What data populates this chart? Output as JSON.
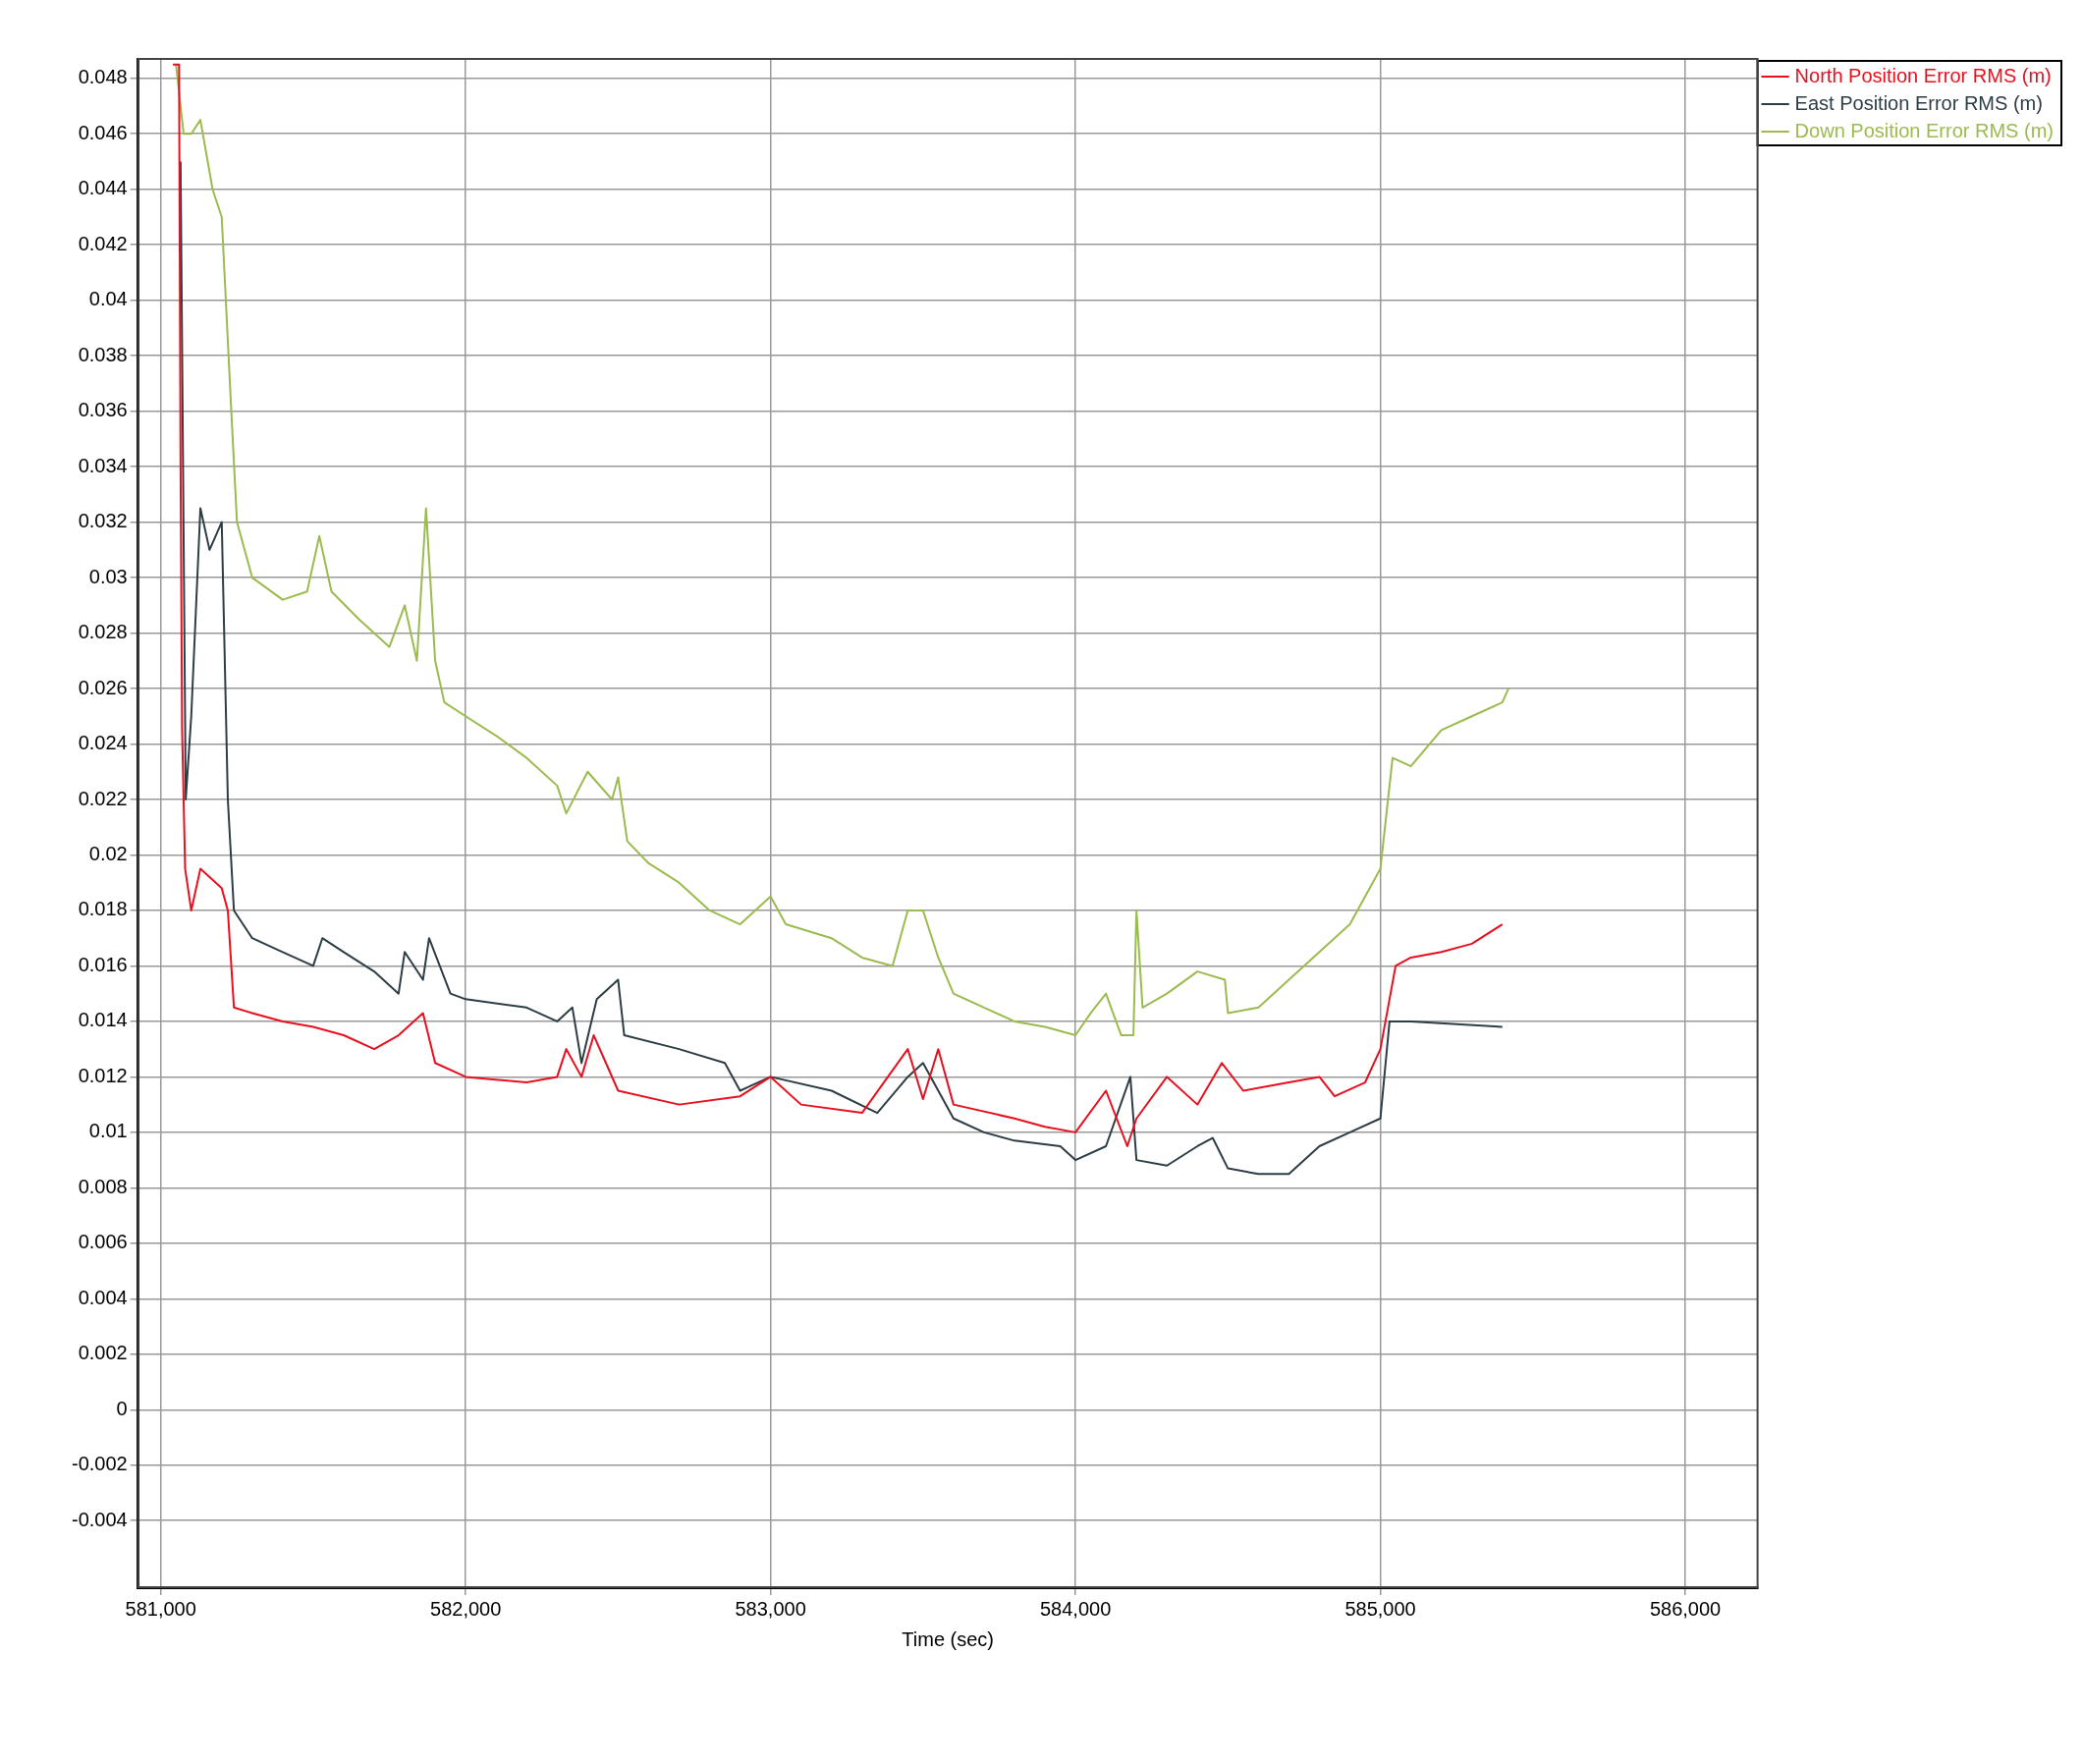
{
  "chart_data": {
    "type": "line",
    "xlabel": "Time (sec)",
    "xlim": [
      580926,
      586237
    ],
    "ylim": [
      -0.0064,
      0.0487
    ],
    "xticks": [
      {
        "value": 581000,
        "label": "581,000"
      },
      {
        "value": 582000,
        "label": "582,000"
      },
      {
        "value": 583000,
        "label": "583,000"
      },
      {
        "value": 584000,
        "label": "584,000"
      },
      {
        "value": 585000,
        "label": "585,000"
      },
      {
        "value": 586000,
        "label": "586,000"
      }
    ],
    "yticks": [
      -0.004,
      -0.002,
      0,
      0.002,
      0.004,
      0.006,
      0.008,
      0.01,
      0.012,
      0.014,
      0.016,
      0.018,
      0.02,
      0.022,
      0.024,
      0.026,
      0.028,
      0.03,
      0.032,
      0.034,
      0.036,
      0.038,
      0.04,
      0.042,
      0.044,
      0.046,
      0.048
    ],
    "grid": true,
    "legend": "top right",
    "marker": "none",
    "line_style": "solid",
    "series": [
      {
        "name": "North Position Error RMS (m)",
        "color": "#e8101f",
        "x": [
          581040,
          581060,
          581065,
          581070,
          581080,
          581100,
          581130,
          581200,
          581220,
          581240,
          581300,
          581400,
          581500,
          581600,
          581700,
          581780,
          581860,
          581900,
          582000,
          582200,
          582300,
          582330,
          582380,
          582420,
          582460,
          582500,
          582700,
          582900,
          583000,
          583100,
          583300,
          583450,
          583500,
          583550,
          583600,
          583800,
          583900,
          584000,
          584100,
          584170,
          584200,
          584300,
          584400,
          584480,
          584550,
          584700,
          584800,
          584850,
          584950,
          585000,
          585050,
          585100,
          585200,
          585300,
          585400
        ],
        "values": [
          0.0485,
          0.0485,
          0.034,
          0.0245,
          0.0195,
          0.018,
          0.0195,
          0.0188,
          0.018,
          0.0145,
          0.0143,
          0.014,
          0.0138,
          0.0135,
          0.013,
          0.0135,
          0.0143,
          0.0125,
          0.012,
          0.0118,
          0.012,
          0.013,
          0.012,
          0.0135,
          0.0125,
          0.0115,
          0.011,
          0.0113,
          0.012,
          0.011,
          0.0107,
          0.013,
          0.0112,
          0.013,
          0.011,
          0.0105,
          0.0102,
          0.01,
          0.0115,
          0.0095,
          0.0105,
          0.012,
          0.011,
          0.0125,
          0.0115,
          0.0118,
          0.012,
          0.0113,
          0.0118,
          0.013,
          0.016,
          0.0163,
          0.0165,
          0.0168,
          0.0175
        ]
      },
      {
        "name": "East Position Error RMS (m)",
        "color": "#2d3d45",
        "x": [
          581065,
          581082,
          581100,
          581130,
          581160,
          581200,
          581220,
          581240,
          581300,
          581400,
          581500,
          581530,
          581600,
          581700,
          581780,
          581800,
          581860,
          581880,
          581950,
          582000,
          582200,
          582300,
          582350,
          582380,
          582430,
          582500,
          582520,
          582700,
          582850,
          582900,
          583000,
          583200,
          583350,
          583450,
          583500,
          583600,
          583700,
          583800,
          583950,
          584000,
          584100,
          584180,
          584200,
          584300,
          584400,
          584450,
          584500,
          584600,
          584700,
          584800,
          584900,
          585000,
          585030,
          585100,
          585400
        ],
        "values": [
          0.045,
          0.022,
          0.025,
          0.0325,
          0.031,
          0.032,
          0.022,
          0.018,
          0.017,
          0.0165,
          0.016,
          0.017,
          0.0165,
          0.0158,
          0.015,
          0.0165,
          0.0155,
          0.017,
          0.015,
          0.0148,
          0.0145,
          0.014,
          0.0145,
          0.0125,
          0.0148,
          0.0155,
          0.0135,
          0.013,
          0.0125,
          0.0115,
          0.012,
          0.0115,
          0.0107,
          0.012,
          0.0125,
          0.0105,
          0.01,
          0.0097,
          0.0095,
          0.009,
          0.0095,
          0.012,
          0.009,
          0.0088,
          0.0095,
          0.0098,
          0.0087,
          0.0085,
          0.0085,
          0.0095,
          0.01,
          0.0105,
          0.014,
          0.014,
          0.0138
        ]
      },
      {
        "name": "Down Position Error RMS (m)",
        "color": "#9bbb4f",
        "x": [
          581050,
          581075,
          581100,
          581130,
          581170,
          581200,
          581230,
          581250,
          581300,
          581400,
          581480,
          581520,
          581560,
          581650,
          581750,
          581800,
          581840,
          581870,
          581900,
          581930,
          582000,
          582100,
          582200,
          582300,
          582330,
          582400,
          582480,
          582500,
          582530,
          582600,
          582700,
          582800,
          582900,
          583000,
          583050,
          583200,
          583300,
          583400,
          583450,
          583500,
          583550,
          583600,
          583700,
          583800,
          583900,
          584000,
          584050,
          584100,
          584150,
          584190,
          584200,
          584220,
          584300,
          584400,
          584490,
          584500,
          584600,
          584700,
          584800,
          584900,
          585000,
          585040,
          585100,
          585200,
          585300,
          585400,
          585420
        ],
        "values": [
          0.0485,
          0.046,
          0.046,
          0.0465,
          0.044,
          0.043,
          0.0363,
          0.032,
          0.03,
          0.0292,
          0.0295,
          0.0315,
          0.0295,
          0.0285,
          0.0275,
          0.029,
          0.027,
          0.0325,
          0.027,
          0.0255,
          0.025,
          0.0243,
          0.0235,
          0.0225,
          0.0215,
          0.023,
          0.022,
          0.0228,
          0.0205,
          0.0197,
          0.019,
          0.018,
          0.0175,
          0.0185,
          0.0175,
          0.017,
          0.0163,
          0.016,
          0.018,
          0.018,
          0.0163,
          0.015,
          0.0145,
          0.014,
          0.0138,
          0.0135,
          0.0143,
          0.015,
          0.0135,
          0.0135,
          0.018,
          0.0145,
          0.015,
          0.0158,
          0.0155,
          0.0143,
          0.0145,
          0.0155,
          0.0165,
          0.0175,
          0.0195,
          0.0235,
          0.0232,
          0.0245,
          0.025,
          0.0255,
          0.026
        ]
      }
    ]
  }
}
